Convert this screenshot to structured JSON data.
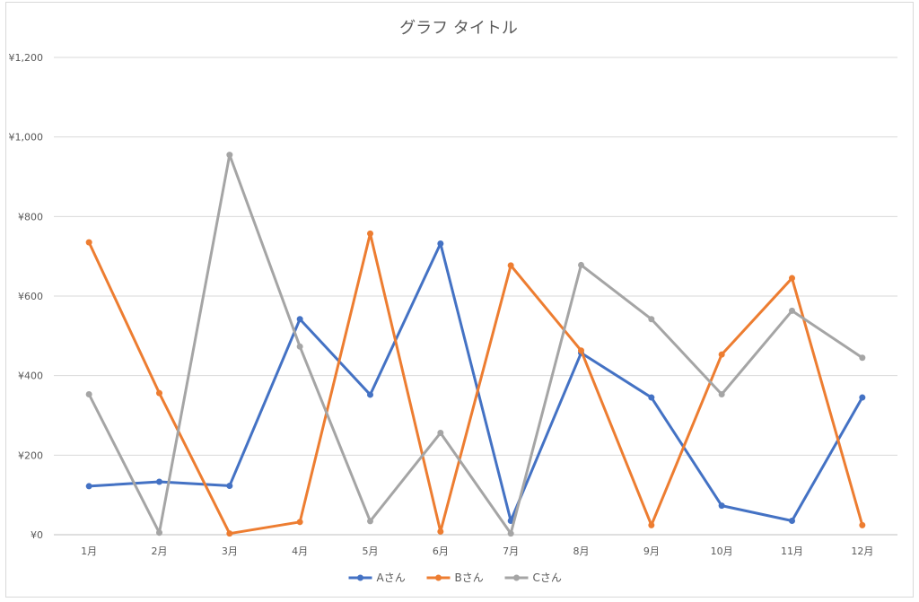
{
  "chart_data": {
    "type": "line",
    "title": "グラフ タイトル",
    "xlabel": "",
    "ylabel": "",
    "categories": [
      "1月",
      "2月",
      "3月",
      "4月",
      "5月",
      "6月",
      "7月",
      "8月",
      "9月",
      "10月",
      "11月",
      "12月"
    ],
    "series": [
      {
        "name": "Aさん",
        "color": "#4472c4",
        "values": [
          122,
          133,
          123,
          542,
          352,
          732,
          35,
          457,
          345,
          73,
          35,
          345
        ]
      },
      {
        "name": "Bさん",
        "color": "#ed7d31",
        "values": [
          735,
          356,
          3,
          32,
          757,
          8,
          677,
          463,
          24,
          453,
          645,
          24
        ]
      },
      {
        "name": "Cさん",
        "color": "#a5a5a5",
        "values": [
          353,
          5,
          955,
          473,
          34,
          256,
          3,
          678,
          542,
          353,
          563,
          445
        ]
      }
    ],
    "ylim": [
      0,
      1200
    ],
    "yticks": [
      0,
      200,
      400,
      600,
      800,
      1000,
      1200
    ],
    "ytick_labels": [
      "¥0",
      "¥200",
      "¥400",
      "¥600",
      "¥800",
      "¥1,000",
      "¥1,200"
    ],
    "grid": true,
    "legend_position": "bottom"
  }
}
